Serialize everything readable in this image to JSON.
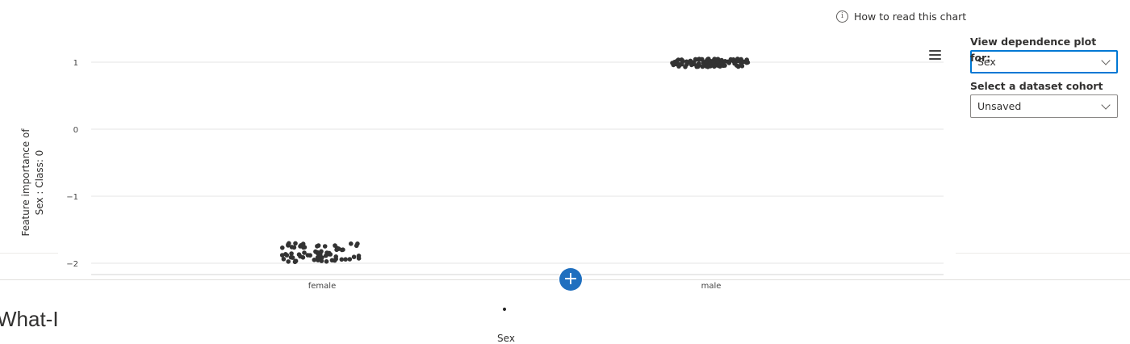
{
  "help": {
    "how_to_read": "How to read this chart"
  },
  "controls": {
    "dependence_label": "View dependence plot for:",
    "dependence_value": "Sex",
    "cohort_label": "Select a dataset cohort",
    "cohort_value": "Unsaved"
  },
  "section": {
    "title": "What-I"
  },
  "chart_data": {
    "type": "scatter",
    "title": "",
    "xlabel": "Sex",
    "ylabel_lines": [
      "Feature importance of",
      "Sex : Class: 0"
    ],
    "categories": [
      "female",
      "male"
    ],
    "y_ticks": [
      "1",
      "0",
      "−1",
      "−2"
    ],
    "y_tick_values": [
      1,
      0,
      -1,
      -2
    ],
    "ylim": [
      -2.2,
      1.15
    ],
    "grid": true,
    "legend": {
      "marker": "•",
      "text": "Sex"
    },
    "series": [
      {
        "category": "female",
        "y_center": -1.84,
        "y_spread": 0.14,
        "count": 70
      },
      {
        "category": "male",
        "y_center": 0.99,
        "y_spread": 0.06,
        "count": 110
      }
    ],
    "point_color": "#333333"
  }
}
